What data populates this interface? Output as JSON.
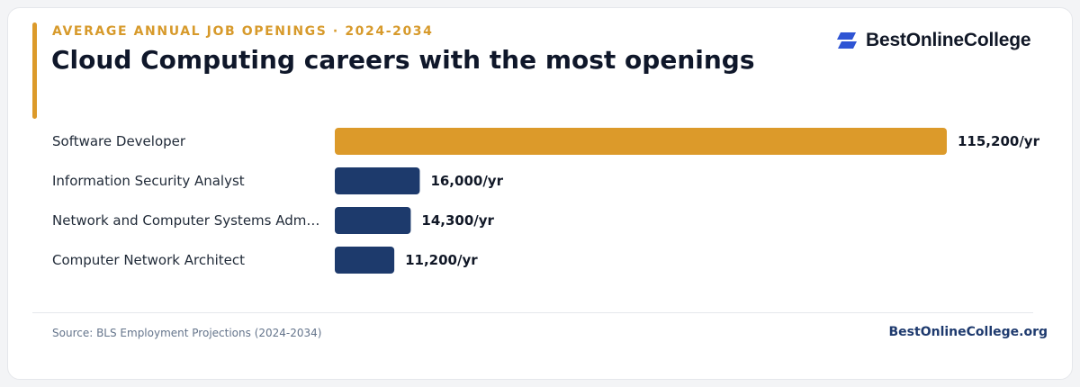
{
  "header": {
    "eyebrow": "AVERAGE ANNUAL JOB OPENINGS · 2024-2034",
    "title": "Cloud Computing careers with the most openings"
  },
  "brand": {
    "name": "BestOnlineCollege",
    "icon": "stacked-parallelogram-logo-icon",
    "color": "#2f55d4"
  },
  "chart_data": {
    "type": "bar",
    "orientation": "horizontal",
    "title": "Cloud Computing careers with the most openings",
    "subtitle": "AVERAGE ANNUAL JOB OPENINGS · 2024-2034",
    "categories": [
      "Software Developer",
      "Information Security Analyst",
      "Network and Computer Systems Adm…",
      "Computer Network Architect"
    ],
    "values": [
      115200,
      16000,
      14300,
      11200
    ],
    "value_labels": [
      "115,200/yr",
      "16,000/yr",
      "14,300/yr",
      "11,200/yr"
    ],
    "xlim": [
      0,
      115200
    ],
    "grid": false,
    "colors": {
      "highlight": "#dc9a2a",
      "default": "#1d3a6c"
    },
    "highlight_index": 0
  },
  "footer": {
    "source": "Source: BLS Employment Projections (2024-2034)",
    "site": "BestOnlineCollege.org"
  }
}
